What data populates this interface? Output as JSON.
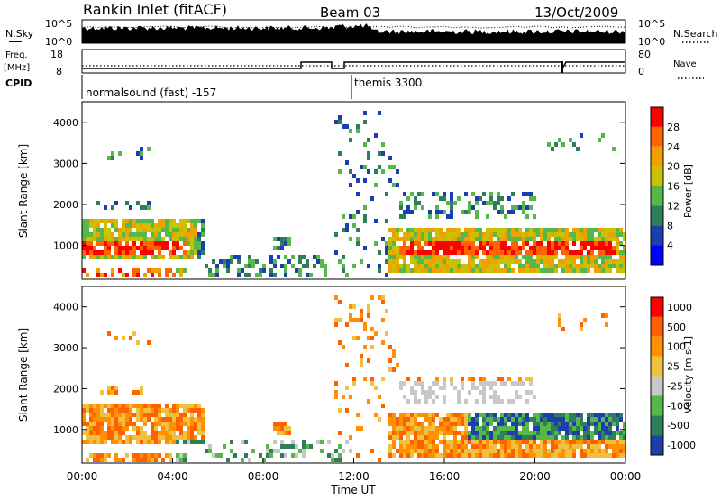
{
  "header": {
    "station": "Rankin Inlet (fitACF)",
    "beam": "Beam 03",
    "date": "13/Oct/2009"
  },
  "noise_panel": {
    "left_label": "N.Sky",
    "right_label": "N.Search",
    "ytick_top": "10^5",
    "ytick_bottom": "10^0"
  },
  "freq_panel": {
    "left_label_1": "Freq.",
    "left_label_2": "[MHz]",
    "right_label": "Nave",
    "left_ticks": [
      "18",
      "8"
    ],
    "right_ticks": [
      "80",
      "0"
    ]
  },
  "cpid_panel": {
    "label": "CPID",
    "segments": [
      {
        "start_hr": 0.0,
        "name": "normalsound (fast) -157"
      },
      {
        "start_hr": 12.0,
        "name": "themis 3300"
      }
    ]
  },
  "chart_data": [
    {
      "type": "heatmap",
      "parameter": "power",
      "ylabel": "Slant Range [km]",
      "xlabel": "",
      "x_range_hours": [
        0,
        24
      ],
      "ylim": [
        180,
        4500
      ],
      "yticks": [
        "1000",
        "2000",
        "3000",
        "4000"
      ],
      "colorbar": {
        "label": "Power [dB]",
        "ticks": [
          "4",
          "8",
          "12",
          "16",
          "20",
          "24",
          "28"
        ],
        "range": [
          0,
          30
        ],
        "colors": [
          "#0000ff",
          "#1b3fb0",
          "#2e7d5b",
          "#56b84a",
          "#c8c200",
          "#f0a000",
          "#ff6400",
          "#ff0000"
        ]
      }
    },
    {
      "type": "heatmap",
      "parameter": "velocity",
      "ylabel": "Slant Range [km]",
      "xlabel": "Time UT",
      "x_range_hours": [
        0,
        24
      ],
      "xticks": [
        "00:00",
        "04:00",
        "08:00",
        "12:00",
        "16:00",
        "20:00",
        "00:00"
      ],
      "ylim": [
        180,
        4500
      ],
      "yticks": [
        "1000",
        "2000",
        "3000",
        "4000"
      ],
      "colorbar": {
        "label": "Velocity [m s-1]",
        "ticks": [
          "1000",
          "500",
          "100",
          "25",
          "-25",
          "-100",
          "-500",
          "-1000"
        ],
        "colors": [
          "#1f3ea8",
          "#2e7d5b",
          "#56b84a",
          "#c8c8c8",
          "#f0c040",
          "#ff9000",
          "#ff6000",
          "#ff0000"
        ]
      }
    }
  ]
}
